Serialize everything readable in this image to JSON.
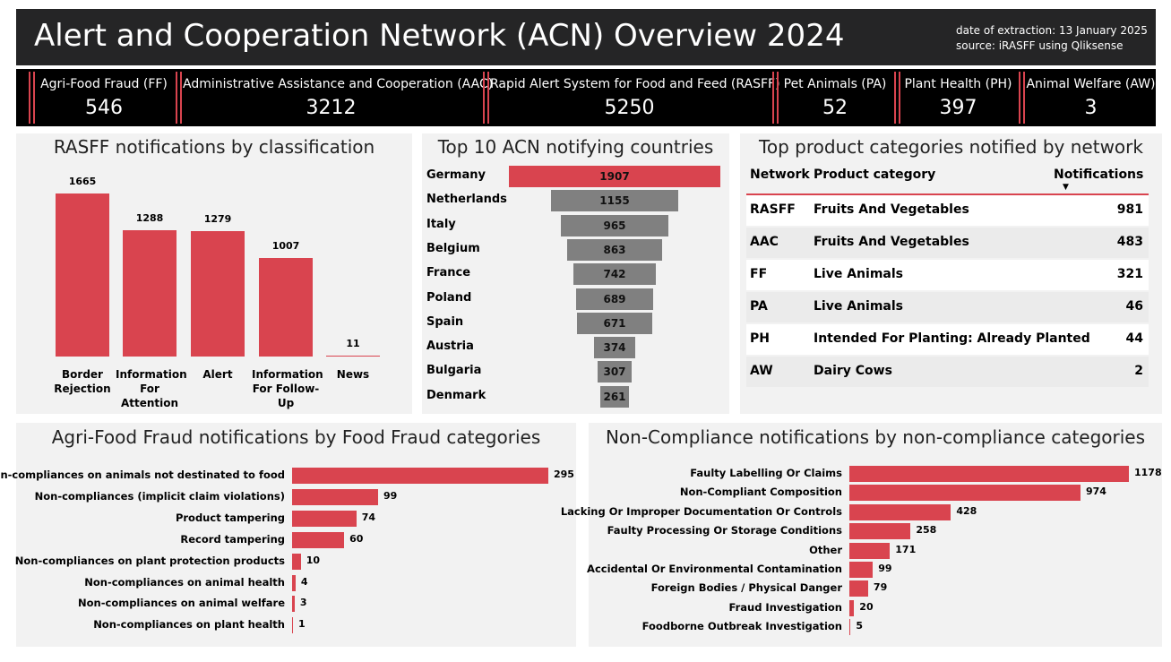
{
  "header": {
    "title": "Alert and Cooperation Network (ACN) Overview 2024",
    "extraction": "date of extraction: 13 January 2025",
    "source": "source: iRASFF using Qliksense"
  },
  "kpis": [
    {
      "label": "Agri-Food Fraud (FF)",
      "value": 546
    },
    {
      "label": "Administrative Assistance and Cooperation (AAC)",
      "value": 3212
    },
    {
      "label": "Rapid Alert System for Food and Feed (RASFF)",
      "value": 5250
    },
    {
      "label": "Pet Animals (PA)",
      "value": 52
    },
    {
      "label": "Plant Health (PH)",
      "value": 397
    },
    {
      "label": "Animal Welfare (AW)",
      "value": 3
    }
  ],
  "chart_data": [
    {
      "type": "bar",
      "title": "RASFF notifications by classification",
      "categories": [
        "Border Rejection",
        "Information For Attention",
        "Alert",
        "Information For Follow-Up",
        "News"
      ],
      "values": [
        1665,
        1288,
        1279,
        1007,
        11
      ],
      "color": "#d9444f"
    },
    {
      "type": "funnel",
      "title": "Top 10 ACN notifying countries",
      "categories": [
        "Germany",
        "Netherlands",
        "Italy",
        "Belgium",
        "France",
        "Poland",
        "Spain",
        "Austria",
        "Bulgaria",
        "Denmark"
      ],
      "values": [
        1907,
        1155,
        965,
        863,
        742,
        689,
        671,
        374,
        307,
        261
      ],
      "colors": [
        "#d9444f",
        "#808080",
        "#808080",
        "#808080",
        "#808080",
        "#808080",
        "#808080",
        "#808080",
        "#808080",
        "#808080"
      ]
    },
    {
      "type": "hbar",
      "title": "Agri-Food Fraud notifications by Food Fraud categories",
      "categories": [
        "Non-compliances on animals not destinated to food",
        "Non-compliances (implicit claim violations)",
        "Product tampering",
        "Record tampering",
        "Non-compliances on plant protection products",
        "Non-compliances on animal health",
        "Non-compliances on animal welfare",
        "Non-compliances on plant health"
      ],
      "values": [
        295,
        99,
        74,
        60,
        10,
        4,
        3,
        1
      ],
      "color": "#d9444f"
    },
    {
      "type": "hbar",
      "title": "Non-Compliance notifications by non-compliance categories",
      "categories": [
        "Faulty Labelling Or Claims",
        "Non-Compliant Composition",
        "Lacking Or Improper Documentation Or Controls",
        "Faulty Processing Or Storage Conditions",
        "Other",
        "Accidental Or Environmental Contamination",
        "Foreign Bodies / Physical Danger",
        "Fraud Investigation",
        "Foodborne Outbreak Investigation"
      ],
      "values": [
        1178,
        974,
        428,
        258,
        171,
        99,
        79,
        20,
        5
      ],
      "color": "#d9444f"
    }
  ],
  "table": {
    "title": "Top product categories notified by network",
    "columns": [
      "Network",
      "Product category",
      "Notifications"
    ],
    "rows": [
      [
        "RASFF",
        "Fruits And Vegetables",
        981
      ],
      [
        "AAC",
        "Fruits And Vegetables",
        483
      ],
      [
        "FF",
        "Live Animals",
        321
      ],
      [
        "PA",
        "Live Animals",
        46
      ],
      [
        "PH",
        "Intended For Planting: Already Planted",
        44
      ],
      [
        "AW",
        "Dairy Cows",
        2
      ]
    ]
  }
}
